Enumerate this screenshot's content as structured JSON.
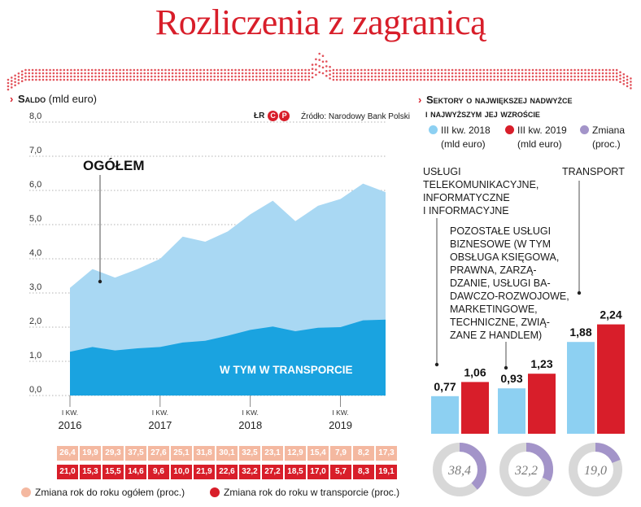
{
  "title": "Rozliczenia z zagranicą",
  "left_section": {
    "heading_bold": "Saldo",
    "heading_rest": "(mld euro)",
    "source": "Źródło: Narodowy Bank Polski",
    "logo_text": "ŁR"
  },
  "right_section": {
    "heading_line1": "Sektory o największej nadwyżce",
    "heading_line2": "i najwyższym jej wzroście"
  },
  "chart_data": [
    {
      "type": "area",
      "y_ticks": [
        "8,0",
        "7,0",
        "6,0",
        "5,0",
        "4,0",
        "3,0",
        "2,0",
        "1,0",
        "0,0"
      ],
      "ylim": [
        0,
        8
      ],
      "grid": true,
      "x_labels": [
        {
          "quarter": "I KW.",
          "year": "2016"
        },
        {
          "quarter": "I KW.",
          "year": "2017"
        },
        {
          "quarter": "I KW.",
          "year": "2018"
        },
        {
          "quarter": "I KW.",
          "year": "2019"
        }
      ],
      "series": [
        {
          "name": "Ogółem",
          "label": "OGÓŁEM",
          "color": "#a9d8f3",
          "values": [
            3.15,
            3.7,
            3.45,
            3.7,
            4.0,
            4.65,
            4.5,
            4.8,
            5.3,
            5.7,
            5.1,
            5.55,
            5.75,
            6.2,
            5.95
          ]
        },
        {
          "name": "W tym w transporcie",
          "label": "W TYM W TRANSPORCIE",
          "color": "#1aa3e0",
          "values": [
            1.28,
            1.42,
            1.32,
            1.38,
            1.42,
            1.55,
            1.6,
            1.75,
            1.92,
            2.02,
            1.88,
            1.98,
            2.0,
            2.2,
            2.22
          ]
        }
      ]
    },
    {
      "type": "bar",
      "legend": [
        {
          "label": "III kw. 2018",
          "sub": "(mld euro)",
          "color": "#8dd0f2"
        },
        {
          "label": "III kw. 2019",
          "sub": "(mld euro)",
          "color": "#d81e2a"
        },
        {
          "label": "Zmiana",
          "sub": "(proc.)",
          "color": "#a394c9"
        }
      ],
      "categories": [
        "Usługi telekomunikacyjne, informatyczne i informacyjne",
        "Pozostałe usługi biznesowe (w tym obsługa księgowa, prawna, zarządzanie, usługi badawczo-rozwojowe, marketingowe, techniczne, związane z handlem)",
        "Transport"
      ],
      "series": [
        {
          "name": "III kw. 2018",
          "values": [
            0.77,
            0.93,
            1.88
          ],
          "labels": [
            "0,77",
            "0,93",
            "1,88"
          ]
        },
        {
          "name": "III kw. 2019",
          "values": [
            1.06,
            1.23,
            2.24
          ],
          "labels": [
            "1,06",
            "1,23",
            "2,24"
          ]
        }
      ],
      "change_pct": [
        38.4,
        32.2,
        19.0
      ],
      "change_labels": [
        "38,4",
        "32,2",
        "19,0"
      ]
    }
  ],
  "yoy_total": {
    "label": "Zmiana rok do roku ogółem (proc.)",
    "color": "#f4b8a0",
    "values": [
      "26,4",
      "19,9",
      "29,3",
      "37,5",
      "27,6",
      "25,1",
      "31,8",
      "30,1",
      "32,5",
      "23,1",
      "12,9",
      "15,4",
      "7,9",
      "8,2",
      "17,3"
    ]
  },
  "yoy_transport": {
    "label": "Zmiana rok do roku w transporcie (proc.)",
    "color": "#d81e2a",
    "values": [
      "21,0",
      "15,3",
      "15,5",
      "14,6",
      "9,6",
      "10,0",
      "21,9",
      "22,6",
      "32,2",
      "27,2",
      "18,5",
      "17,0",
      "5,7",
      "8,3",
      "19,1"
    ]
  },
  "sector_labels": {
    "telecom": [
      "Usługi",
      "telekomunikacyjne,",
      "informatyczne",
      "i informacyjne"
    ],
    "business": [
      "Pozostałe usługi",
      "biznesowe (w tym",
      "obsługa księgowa,",
      "prawna, zarzą-",
      "dzanie, usługi ba-",
      "dawczo-rozwojowe,",
      "marketingowe,",
      "techniczne, zwią-",
      "zane z handlem)"
    ],
    "transport": [
      "Transport"
    ]
  }
}
